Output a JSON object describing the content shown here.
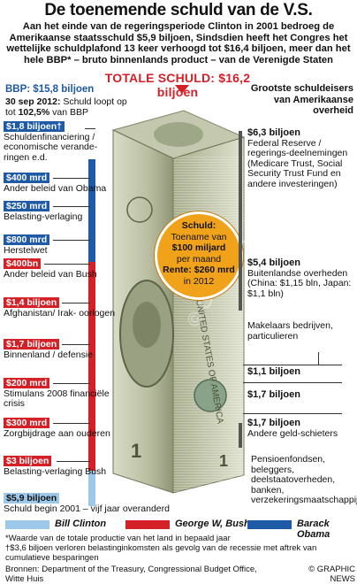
{
  "title": "De toenemende schuld van de  V.S.",
  "intro": "Aan het einde van de regeringsperiode Clinton in 2001 bedroeg de Amerikaanse staatsschuld $5,9 biljoen, Sindsdien heeft het Congres het wettelijke schuldplafond 13 keer verhoogd tot $16,4 biljoen, meer dan het hele BBP* – bruto binnenlands product – van de Verenigde Staten",
  "total": "TOTALE SCHULD:  $16,2 biljoen",
  "bbp": "BBP:  $15,8 biljoen",
  "date_note": {
    "date": "30 sep 2012:",
    "rest": " Schuld loopt op tot ",
    "pct": "102,5%",
    "after": " van BBP"
  },
  "right_heading": "Grootste schuldeisers van Amerikaanse overheid",
  "colors": {
    "blue": "#1f5aa6",
    "red": "#d42027",
    "light_blue": "#9ec8ea"
  },
  "left_items": [
    {
      "amount": "$1,8 biljoen†",
      "label": "Schuldenfinanciering / economische verande-ringen e.d.",
      "color": "blue"
    },
    {
      "amount": "$400 mrd",
      "label": "Ander beleid van Obama",
      "color": "blue"
    },
    {
      "amount": "$250 mrd",
      "label": "Belasting-verlaging",
      "color": "blue"
    },
    {
      "amount": "$800 mrd",
      "label": "Herstelwet",
      "color": "blue"
    },
    {
      "amount": "$400bn",
      "label": "Ander beleid van Bush",
      "color": "red"
    },
    {
      "amount": "$1,4 biljoen",
      "label": "Afghanistan/ Irak- oorlogen",
      "color": "red"
    },
    {
      "amount": "$1,7 biljoen",
      "label": "Binnenland / defensie",
      "color": "red"
    },
    {
      "amount": "$200 mrd",
      "label": "Stimulans 2008 financiële crisis",
      "color": "red"
    },
    {
      "amount": "$300 mrd",
      "label": "Zorgbijdrage aan ouderen",
      "color": "red"
    },
    {
      "amount": "$3 biljoen",
      "label": "Belasting-verlaging Bush",
      "color": "red"
    },
    {
      "amount": "$5,9 biljoen",
      "label": "Schuld begin 2001 – vijf jaar overanderd",
      "color": "light_blue"
    }
  ],
  "circle": {
    "heading": "Schuld:",
    "line1": "Toename van",
    "line2": "$100 miljard",
    "line3": "per maand",
    "line4": "Rente: $260 mrd",
    "line5": "in 2012"
  },
  "right_items": [
    {
      "amount": "$6,3 biljoen",
      "label": "Federal Reserve / regerings-deelnemingen (Medicare Trust, Social Security Trust Fund en andere investeringen)"
    },
    {
      "amount": "$5,4 biljoen",
      "label": "Buitenlandse overheden (China: $1,15 bln, Japan: $1,1 bln)"
    },
    {
      "amount": "",
      "label": "Makelaars bedrijven, particulieren"
    },
    {
      "amount": "$1,1 biljoen",
      "label": ""
    },
    {
      "amount": "$1,7 biljoen",
      "label": ""
    },
    {
      "amount": "$1,7 biljoen",
      "label": "Andere geld-schieters"
    },
    {
      "amount": "",
      "label": "Pensioenfondsen, beleggers, deelstaatoverheden, banken, verzekeringsmaatschappijen"
    }
  ],
  "legend": [
    {
      "name": "Bill Clinton",
      "color": "light_blue"
    },
    {
      "name": "George W, Bush",
      "color": "red"
    },
    {
      "name": "Barack Obama",
      "color": "blue"
    }
  ],
  "footnotes": {
    "star": "*Waarde van de totale productie van het land in bepaald jaar",
    "dagger": "†$3,6 biljoen verloren belastinginkomsten als gevolg van de recessie met aftrek van cumulatieve besparingen",
    "sources": "Bronnen: Department of the Treasury, Congressional Budget Office, Witte Huis",
    "credit": "© GRAPHIC NEWS"
  },
  "watermark": "© GRAPHIC NEWS"
}
